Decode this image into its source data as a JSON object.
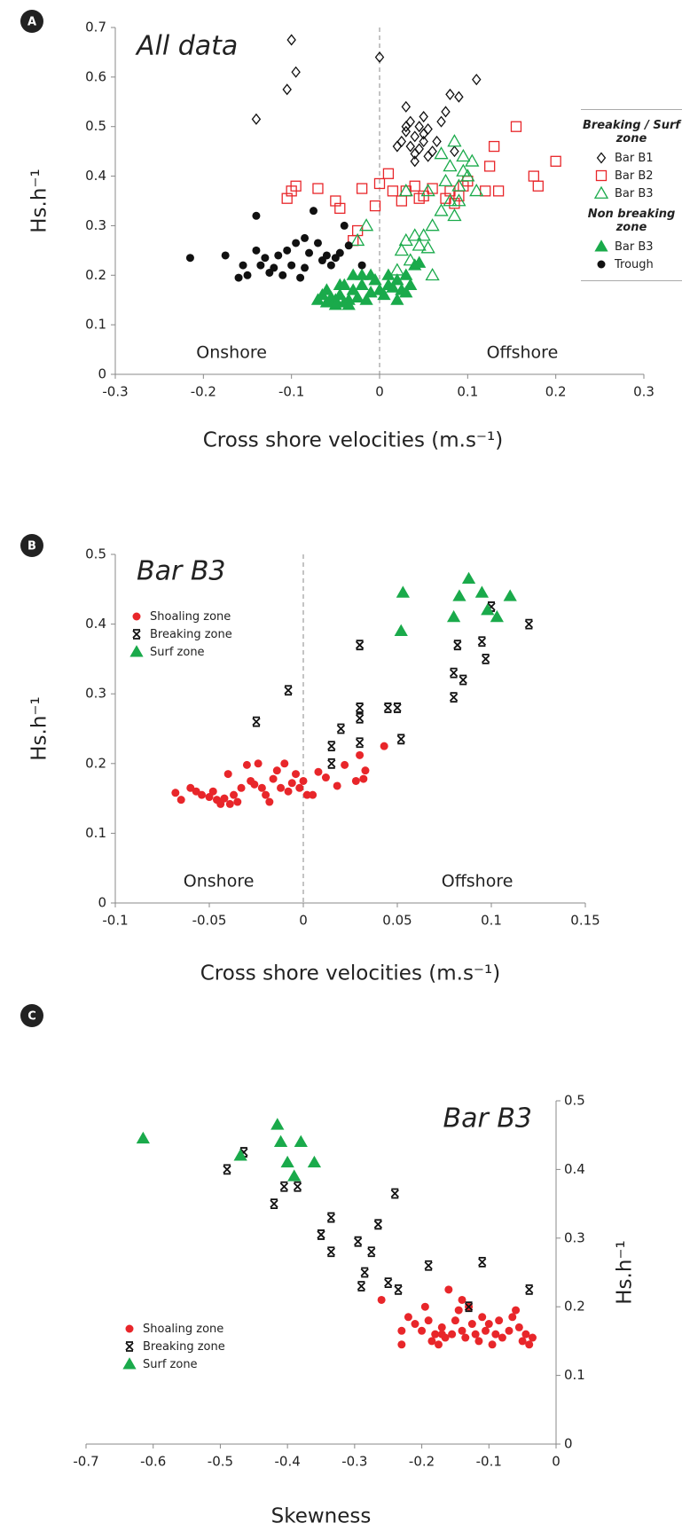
{
  "chart_data": [
    {
      "type": "scatter",
      "label": "A",
      "title": "All data",
      "xlabel": "Cross shore velocities (m.s⁻¹)",
      "ylabel": "Hs.h⁻¹",
      "xlim": [
        -0.3,
        0.3
      ],
      "xticks": [
        -0.3,
        -0.2,
        -0.1,
        0,
        0.1,
        0.2,
        0.3
      ],
      "ylim": [
        0,
        0.7
      ],
      "yticks": [
        0,
        0.1,
        0.2,
        0.3,
        0.4,
        0.5,
        0.6,
        0.7
      ],
      "reference_x": 0,
      "annotations": [
        "Onshore",
        "Offshore"
      ],
      "legend": "right",
      "series_groups": [
        {
          "name": "Breaking / Surf zone",
          "series": [
            {
              "name": "Bar B1",
              "marker": "diamond-open",
              "color": "#111111",
              "x": [
                -0.1,
                -0.095,
                -0.105,
                -0.14,
                0,
                0.11,
                0.08,
                0.09,
                0.03,
                0.05,
                0.035,
                0.045,
                0.055,
                0.03,
                0.04,
                0.05,
                0.025,
                0.035,
                0.045,
                0.06,
                0.055,
                0.04,
                0.07,
                0.075,
                0.085,
                0.065,
                0.02,
                0.05,
                0.03,
                0.04
              ],
              "values": [
                0.675,
                0.61,
                0.575,
                0.515,
                0.64,
                0.595,
                0.565,
                0.56,
                0.54,
                0.52,
                0.51,
                0.5,
                0.495,
                0.49,
                0.48,
                0.47,
                0.47,
                0.46,
                0.455,
                0.45,
                0.44,
                0.43,
                0.51,
                0.53,
                0.45,
                0.47,
                0.46,
                0.485,
                0.5,
                0.445
              ]
            },
            {
              "name": "Bar B2",
              "marker": "square-open",
              "color": "#e8262a",
              "x": [
                -0.1,
                -0.095,
                -0.105,
                -0.07,
                -0.05,
                -0.045,
                -0.02,
                -0.025,
                -0.03,
                0,
                0.01,
                0.015,
                0.025,
                0.03,
                0.045,
                0.05,
                0.06,
                0.075,
                0.08,
                0.085,
                0.09,
                0.095,
                0.1,
                0.12,
                0.13,
                0.135,
                0.155,
                0.175,
                0.18,
                0.2,
                0.125,
                -0.005,
                0.04
              ],
              "values": [
                0.37,
                0.38,
                0.355,
                0.375,
                0.35,
                0.335,
                0.375,
                0.29,
                0.27,
                0.385,
                0.405,
                0.37,
                0.35,
                0.37,
                0.355,
                0.36,
                0.375,
                0.355,
                0.37,
                0.345,
                0.36,
                0.38,
                0.39,
                0.37,
                0.46,
                0.37,
                0.5,
                0.4,
                0.38,
                0.43,
                0.42,
                0.34,
                0.38
              ]
            },
            {
              "name": "Bar B3",
              "marker": "triangle-open",
              "color": "#1aaa4b",
              "x": [
                -0.025,
                -0.015,
                0.02,
                0.025,
                0.03,
                0.035,
                0.04,
                0.045,
                0.05,
                0.055,
                0.06,
                0.07,
                0.08,
                0.085,
                0.09,
                0.095,
                0.1,
                0.105,
                0.11,
                0.085,
                0.075,
                0.08,
                0.095,
                0.03,
                0.055,
                0.07,
                0.09,
                0.06
              ],
              "values": [
                0.27,
                0.3,
                0.21,
                0.25,
                0.27,
                0.23,
                0.28,
                0.26,
                0.28,
                0.255,
                0.3,
                0.33,
                0.35,
                0.32,
                0.38,
                0.41,
                0.4,
                0.43,
                0.37,
                0.47,
                0.39,
                0.42,
                0.44,
                0.37,
                0.37,
                0.445,
                0.35,
                0.2
              ]
            }
          ]
        },
        {
          "name": "Non breaking zone",
          "series": [
            {
              "name": "Bar B3",
              "marker": "triangle",
              "color": "#1aaa4b",
              "x": [
                -0.07,
                -0.065,
                -0.06,
                -0.055,
                -0.05,
                -0.045,
                -0.04,
                -0.035,
                -0.03,
                -0.025,
                -0.02,
                -0.015,
                -0.01,
                -0.005,
                0,
                0.005,
                0.01,
                0.015,
                0.02,
                0.025,
                0.03,
                0.035,
                0.04,
                0.045,
                -0.03,
                -0.02,
                -0.045,
                -0.06,
                -0.04,
                0.01,
                -0.01,
                0.03,
                -0.05,
                -0.035,
                0.02
              ],
              "values": [
                0.15,
                0.16,
                0.145,
                0.155,
                0.15,
                0.16,
                0.145,
                0.15,
                0.17,
                0.155,
                0.18,
                0.15,
                0.165,
                0.19,
                0.17,
                0.16,
                0.18,
                0.175,
                0.19,
                0.17,
                0.2,
                0.18,
                0.22,
                0.225,
                0.2,
                0.2,
                0.18,
                0.17,
                0.18,
                0.2,
                0.2,
                0.165,
                0.14,
                0.14,
                0.15
              ]
            },
            {
              "name": "Trough",
              "marker": "circle",
              "color": "#111111",
              "x": [
                -0.215,
                -0.175,
                -0.16,
                -0.155,
                -0.14,
                -0.14,
                -0.13,
                -0.12,
                -0.115,
                -0.105,
                -0.1,
                -0.095,
                -0.09,
                -0.085,
                -0.08,
                -0.075,
                -0.07,
                -0.065,
                -0.06,
                -0.055,
                -0.05,
                -0.045,
                -0.04,
                -0.035,
                -0.02,
                -0.11,
                -0.125,
                -0.085,
                -0.15,
                -0.135
              ],
              "values": [
                0.235,
                0.24,
                0.195,
                0.22,
                0.32,
                0.25,
                0.235,
                0.215,
                0.24,
                0.25,
                0.22,
                0.265,
                0.195,
                0.275,
                0.245,
                0.33,
                0.265,
                0.23,
                0.24,
                0.22,
                0.235,
                0.245,
                0.3,
                0.26,
                0.22,
                0.2,
                0.205,
                0.215,
                0.2,
                0.22
              ]
            }
          ]
        }
      ]
    },
    {
      "type": "scatter",
      "label": "B",
      "title": "Bar B3",
      "xlabel": "Cross shore velocities (m.s⁻¹)",
      "ylabel": "Hs.h⁻¹",
      "xlim": [
        -0.1,
        0.15
      ],
      "xticks": [
        -0.1,
        -0.05,
        0,
        0.05,
        0.1,
        0.15
      ],
      "ylim": [
        0,
        0.5
      ],
      "yticks": [
        0,
        0.1,
        0.2,
        0.3,
        0.4,
        0.5
      ],
      "reference_x": 0,
      "annotations": [
        "Onshore",
        "Offshore"
      ],
      "legend": "upper left",
      "series": [
        {
          "name": "Shoaling zone",
          "marker": "circle",
          "color": "#e8262a",
          "x": [
            -0.068,
            -0.065,
            -0.06,
            -0.057,
            -0.054,
            -0.05,
            -0.048,
            -0.046,
            -0.044,
            -0.042,
            -0.04,
            -0.039,
            -0.037,
            -0.035,
            -0.033,
            -0.03,
            -0.028,
            -0.026,
            -0.024,
            -0.022,
            -0.02,
            -0.018,
            -0.016,
            -0.014,
            -0.012,
            -0.01,
            -0.008,
            -0.006,
            -0.004,
            -0.002,
            0,
            0.002,
            0.005,
            0.008,
            0.012,
            0.018,
            0.022,
            0.028,
            0.03,
            0.032,
            0.033,
            0.043
          ],
          "values": [
            0.158,
            0.148,
            0.165,
            0.16,
            0.155,
            0.152,
            0.16,
            0.148,
            0.142,
            0.15,
            0.185,
            0.142,
            0.155,
            0.145,
            0.165,
            0.198,
            0.175,
            0.17,
            0.2,
            0.165,
            0.155,
            0.145,
            0.178,
            0.19,
            0.165,
            0.2,
            0.16,
            0.172,
            0.185,
            0.165,
            0.175,
            0.155,
            0.155,
            0.188,
            0.18,
            0.168,
            0.198,
            0.175,
            0.212,
            0.178,
            0.19,
            0.225
          ]
        },
        {
          "name": "Breaking zone",
          "marker": "x",
          "color": "#111111",
          "x": [
            -0.025,
            -0.008,
            0.015,
            0.015,
            0.02,
            0.03,
            0.03,
            0.03,
            0.03,
            0.045,
            0.05,
            0.052,
            0.08,
            0.08,
            0.082,
            0.085,
            0.095,
            0.097,
            0.1,
            0.12
          ],
          "values": [
            0.26,
            0.305,
            0.225,
            0.2,
            0.25,
            0.28,
            0.265,
            0.37,
            0.23,
            0.28,
            0.28,
            0.235,
            0.33,
            0.295,
            0.37,
            0.32,
            0.375,
            0.35,
            0.425,
            0.4
          ]
        },
        {
          "name": "Surf zone",
          "marker": "triangle",
          "color": "#1aaa4b",
          "x": [
            0.053,
            0.052,
            0.08,
            0.083,
            0.088,
            0.095,
            0.098,
            0.103,
            0.11
          ],
          "values": [
            0.445,
            0.39,
            0.41,
            0.44,
            0.465,
            0.445,
            0.42,
            0.41,
            0.44
          ]
        }
      ]
    },
    {
      "type": "scatter",
      "label": "C",
      "title": "Bar B3",
      "xlabel": "Skewness",
      "ylabel": "Hs.h⁻¹",
      "yaxis_side": "right",
      "xlim": [
        -0.7,
        0
      ],
      "xticks": [
        -0.7,
        -0.6,
        -0.5,
        -0.4,
        -0.3,
        -0.2,
        -0.1,
        0
      ],
      "ylim": [
        0,
        0.5
      ],
      "yticks": [
        0,
        0.1,
        0.2,
        0.3,
        0.4,
        0.5
      ],
      "legend": "lower left",
      "series": [
        {
          "name": "Shoaling zone",
          "marker": "circle",
          "color": "#e8262a",
          "x": [
            -0.23,
            -0.23,
            -0.22,
            -0.21,
            -0.2,
            -0.195,
            -0.19,
            -0.185,
            -0.18,
            -0.175,
            -0.17,
            -0.165,
            -0.16,
            -0.155,
            -0.15,
            -0.145,
            -0.14,
            -0.135,
            -0.13,
            -0.125,
            -0.12,
            -0.115,
            -0.11,
            -0.105,
            -0.1,
            -0.095,
            -0.09,
            -0.085,
            -0.08,
            -0.07,
            -0.065,
            -0.06,
            -0.055,
            -0.05,
            -0.045,
            -0.04,
            -0.035,
            -0.26,
            -0.17,
            -0.14
          ],
          "values": [
            0.145,
            0.165,
            0.185,
            0.175,
            0.165,
            0.2,
            0.18,
            0.15,
            0.16,
            0.145,
            0.17,
            0.155,
            0.225,
            0.16,
            0.18,
            0.195,
            0.165,
            0.155,
            0.2,
            0.175,
            0.16,
            0.15,
            0.185,
            0.165,
            0.175,
            0.145,
            0.16,
            0.18,
            0.155,
            0.165,
            0.185,
            0.195,
            0.17,
            0.15,
            0.16,
            0.145,
            0.155,
            0.21,
            0.16,
            0.21
          ]
        },
        {
          "name": "Breaking zone",
          "marker": "x",
          "color": "#111111",
          "x": [
            -0.49,
            -0.465,
            -0.42,
            -0.405,
            -0.385,
            -0.35,
            -0.335,
            -0.335,
            -0.295,
            -0.285,
            -0.275,
            -0.265,
            -0.29,
            -0.25,
            -0.24,
            -0.19,
            -0.11,
            -0.13,
            -0.04,
            -0.235
          ],
          "values": [
            0.4,
            0.425,
            0.35,
            0.375,
            0.375,
            0.305,
            0.33,
            0.28,
            0.295,
            0.25,
            0.28,
            0.32,
            0.23,
            0.235,
            0.365,
            0.26,
            0.265,
            0.2,
            0.225,
            0.225
          ]
        },
        {
          "name": "Surf zone",
          "marker": "triangle",
          "color": "#1aaa4b",
          "x": [
            -0.615,
            -0.47,
            -0.415,
            -0.41,
            -0.4,
            -0.39,
            -0.38,
            -0.36
          ],
          "values": [
            0.445,
            0.42,
            0.465,
            0.44,
            0.41,
            0.39,
            0.44,
            0.41
          ]
        }
      ]
    }
  ]
}
